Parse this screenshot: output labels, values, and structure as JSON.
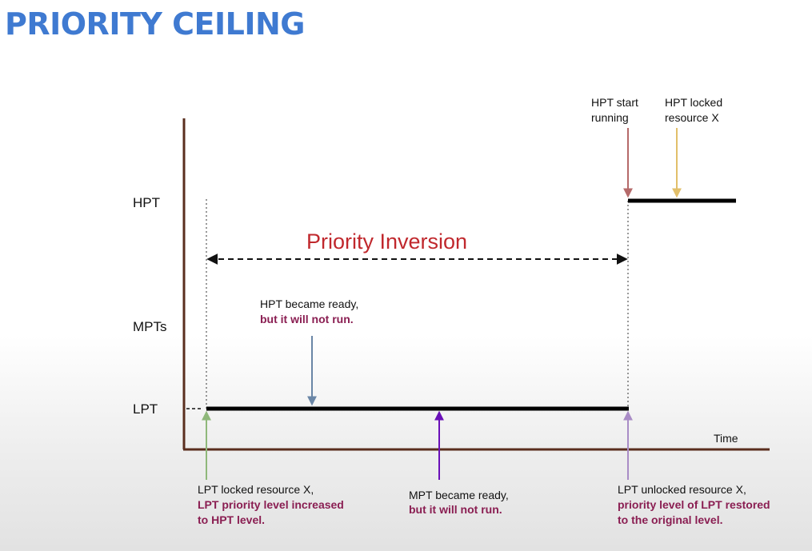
{
  "title": "PRIORITY CEILING",
  "levels": {
    "hpt": "HPT",
    "mpt": "MPTs",
    "lpt": "LPT"
  },
  "axis": {
    "time_label": "Time"
  },
  "inversion": {
    "label": "Priority Inversion"
  },
  "annotations": {
    "hpt_start": {
      "line1": "HPT start",
      "line2": "running"
    },
    "hpt_locked": {
      "line1": "HPT locked",
      "line2": "resource X"
    },
    "hpt_ready": {
      "line1": "HPT became ready,",
      "line2": "but it will not run."
    },
    "lpt_locked": {
      "line1": "LPT locked resource X,",
      "line2": "LPT priority level increased",
      "line3": "to HPT level."
    },
    "mpt_ready": {
      "line1": "MPT became ready,",
      "line2": "but it will not run."
    },
    "lpt_unlocked": {
      "line1": "LPT unlocked resource X,",
      "line2": "priority level of LPT restored",
      "line3": "to the original level."
    }
  },
  "colors": {
    "title": "#3f7ad1",
    "axis": "#5a2e1e",
    "inversion": "#c0282d",
    "highlight": "#8a1e52",
    "arrow_hpt_start": "#b56a6a",
    "arrow_hpt_locked": "#e2bf6a",
    "arrow_hpt_ready": "#6a86a6",
    "arrow_lpt_locked": "#8fb87a",
    "arrow_mpt_ready": "#6a10b8",
    "arrow_lpt_unlocked": "#a98cc6"
  }
}
